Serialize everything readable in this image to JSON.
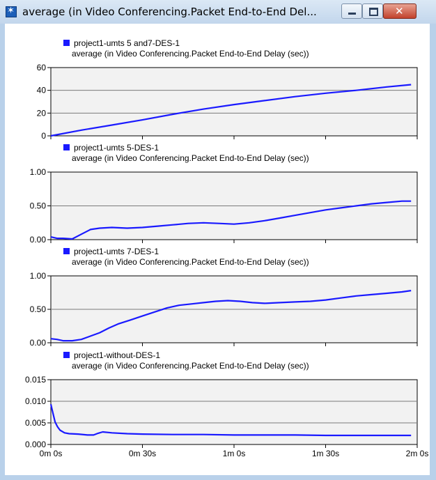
{
  "window": {
    "title": "average (in Video Conferencing.Packet End-to-End Del...",
    "icon": "opnet-star-icon",
    "buttons": [
      "minimize",
      "maximize",
      "close"
    ]
  },
  "chart_data": [
    {
      "type": "line",
      "legend": "project1-umts 5 and7-DES-1",
      "title": "average (in Video Conferencing.Packet End-to-End Delay (sec))",
      "ylim": [
        0,
        60
      ],
      "yticks": [
        "0",
        "20",
        "40",
        "60"
      ],
      "xlim": [
        0,
        120
      ],
      "color": "#1a1aff",
      "x": [
        0,
        10,
        20,
        30,
        40,
        50,
        60,
        70,
        80,
        90,
        100,
        110,
        118
      ],
      "y": [
        0,
        5,
        9.5,
        14,
        19,
        23.5,
        27.5,
        31,
        34.5,
        37.5,
        40,
        43,
        45
      ]
    },
    {
      "type": "line",
      "legend": "project1-umts 5-DES-1",
      "title": "average (in Video Conferencing.Packet End-to-End Delay (sec))",
      "ylim": [
        0,
        1
      ],
      "yticks": [
        "0.00",
        "0.50",
        "1.00"
      ],
      "xlim": [
        0,
        120
      ],
      "color": "#1a1aff",
      "x": [
        0,
        2,
        4,
        7,
        10,
        13,
        16,
        20,
        25,
        30,
        35,
        40,
        45,
        50,
        55,
        60,
        65,
        70,
        75,
        80,
        85,
        90,
        95,
        100,
        105,
        110,
        115,
        118
      ],
      "y": [
        0.04,
        0.02,
        0.02,
        0.01,
        0.08,
        0.15,
        0.17,
        0.18,
        0.17,
        0.18,
        0.2,
        0.22,
        0.24,
        0.25,
        0.24,
        0.23,
        0.25,
        0.28,
        0.32,
        0.36,
        0.4,
        0.44,
        0.47,
        0.5,
        0.53,
        0.55,
        0.57,
        0.57
      ]
    },
    {
      "type": "line",
      "legend": "project1-umts 7-DES-1",
      "title": "average (in Video Conferencing.Packet End-to-End Delay (sec))",
      "ylim": [
        0,
        1
      ],
      "yticks": [
        "0.00",
        "0.50",
        "1.00"
      ],
      "xlim": [
        0,
        120
      ],
      "color": "#1a1aff",
      "x": [
        0,
        2,
        4,
        7,
        10,
        13,
        16,
        19,
        22,
        26,
        30,
        34,
        38,
        42,
        46,
        50,
        54,
        58,
        62,
        66,
        70,
        75,
        80,
        85,
        90,
        95,
        100,
        105,
        110,
        115,
        118
      ],
      "y": [
        0.06,
        0.05,
        0.03,
        0.03,
        0.05,
        0.1,
        0.15,
        0.22,
        0.28,
        0.34,
        0.4,
        0.46,
        0.52,
        0.56,
        0.58,
        0.6,
        0.62,
        0.63,
        0.62,
        0.6,
        0.59,
        0.6,
        0.61,
        0.62,
        0.64,
        0.67,
        0.7,
        0.72,
        0.74,
        0.76,
        0.78
      ]
    },
    {
      "type": "line",
      "legend": "project1-without-DES-1",
      "title": "average (in Video Conferencing.Packet End-to-End Delay (sec))",
      "ylim": [
        0,
        0.015
      ],
      "yticks": [
        "0.000",
        "0.005",
        "0.010",
        "0.015"
      ],
      "xlim": [
        0,
        120
      ],
      "xticks": [
        "0m 0s",
        "0m 30s",
        "1m 0s",
        "1m 30s",
        "2m 0s"
      ],
      "color": "#1a1aff",
      "x": [
        0,
        0.7,
        1.4,
        2.2,
        3,
        4.5,
        6,
        9,
        12,
        14,
        15.5,
        17,
        20,
        25,
        30,
        40,
        50,
        60,
        70,
        80,
        90,
        100,
        110,
        118
      ],
      "y": [
        0.0093,
        0.0072,
        0.0052,
        0.0041,
        0.0033,
        0.0027,
        0.0025,
        0.0024,
        0.0022,
        0.0022,
        0.0026,
        0.0029,
        0.0027,
        0.0025,
        0.0024,
        0.0023,
        0.0023,
        0.0022,
        0.0022,
        0.0022,
        0.0021,
        0.0021,
        0.0021,
        0.0021
      ]
    }
  ]
}
